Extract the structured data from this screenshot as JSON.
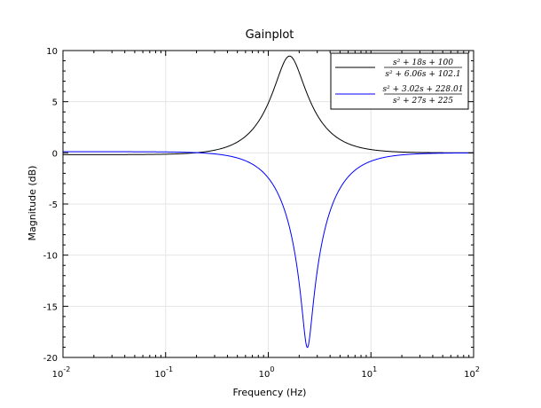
{
  "chart_data": {
    "type": "line",
    "title": "Gainplot",
    "xlabel": "Frequency (Hz)",
    "ylabel": "Magnitude (dB)",
    "xscale": "log",
    "xlim": [
      0.01,
      100
    ],
    "ylim": [
      -20,
      10
    ],
    "x_ticks": [
      {
        "value": 0.01,
        "mant": "10",
        "exp": "-2"
      },
      {
        "value": 0.1,
        "mant": "10",
        "exp": "-1"
      },
      {
        "value": 1,
        "mant": "10",
        "exp": "0"
      },
      {
        "value": 10,
        "mant": "10",
        "exp": "1"
      },
      {
        "value": 100,
        "mant": "10",
        "exp": "2"
      }
    ],
    "y_ticks": [
      {
        "value": 10,
        "label": "10"
      },
      {
        "value": 5,
        "label": "5"
      },
      {
        "value": 0,
        "label": "0"
      },
      {
        "value": -5,
        "label": "-5"
      },
      {
        "value": -10,
        "label": "-10"
      },
      {
        "value": -15,
        "label": "-15"
      },
      {
        "value": -20,
        "label": "-20"
      }
    ],
    "grid": true,
    "legend_position": "top-right",
    "series": [
      {
        "name": "(s^2+18s+100)/(s^2+6.06s+102.1)",
        "legend_num": "s² + 18s + 100",
        "legend_den": "s² + 6.06s + 102.1",
        "color": "#000000",
        "num": [
          1,
          18,
          100
        ],
        "den": [
          1,
          6.06,
          102.1
        ]
      },
      {
        "name": "(s^2+3.02s+228.01)/(s^2+27s+225)",
        "legend_num": "s² + 3.02s + 228.01",
        "legend_den": "s² + 27s + 225",
        "color": "#0000ff",
        "num": [
          1,
          3.02,
          228.01
        ],
        "den": [
          1,
          27,
          225
        ]
      }
    ]
  }
}
